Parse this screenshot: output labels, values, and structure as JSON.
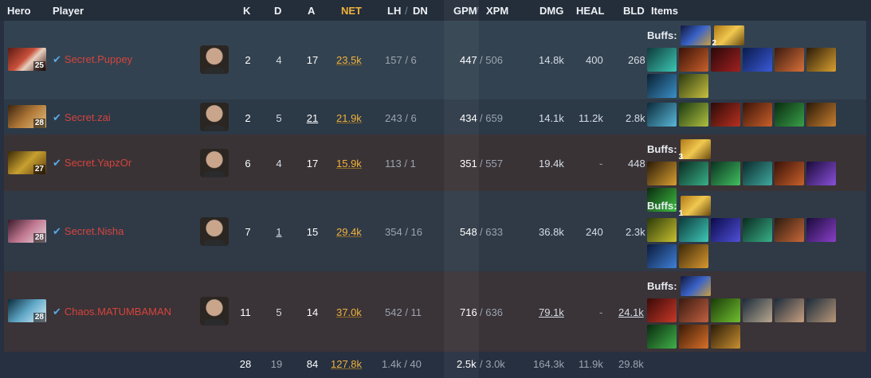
{
  "headers": {
    "hero": "Hero",
    "player": "Player",
    "k": "K",
    "d": "D",
    "a": "A",
    "net": "NET",
    "lh": "LH",
    "dn": "DN",
    "gpm": "GPM",
    "xpm": "XPM",
    "dmg": "DMG",
    "heal": "HEAL",
    "bld": "BLD",
    "items": "Items",
    "slash": "/"
  },
  "buffs_label": "Buffs:",
  "rows": [
    {
      "level": "25",
      "player": "Secret.Puppey",
      "k": "2",
      "d": "4",
      "a": "17",
      "net": "23.5k",
      "lh": "157",
      "dn": "6",
      "gpm": "447",
      "xpm": "506",
      "dmg": "14.8k",
      "heal": "400",
      "bld": "268",
      "buff_count": "2"
    },
    {
      "level": "28",
      "player": "Secret.zai",
      "k": "2",
      "d": "5",
      "a": "21",
      "net": "21.9k",
      "lh": "243",
      "dn": "6",
      "gpm": "434",
      "xpm": "659",
      "dmg": "14.1k",
      "heal": "11.2k",
      "bld": "2.8k"
    },
    {
      "level": "27",
      "player": "Secret.YapzOr",
      "k": "6",
      "d": "4",
      "a": "17",
      "net": "15.9k",
      "lh": "113",
      "dn": "1",
      "gpm": "351",
      "xpm": "557",
      "dmg": "19.4k",
      "heal": "-",
      "bld": "448",
      "buff_count": "3"
    },
    {
      "level": "28",
      "player": "Secret.Nisha",
      "k": "7",
      "d": "1",
      "a": "15",
      "net": "29.4k",
      "lh": "354",
      "dn": "16",
      "gpm": "548",
      "xpm": "633",
      "dmg": "36.8k",
      "heal": "240",
      "bld": "2.3k",
      "buff_count": "1"
    },
    {
      "level": "28",
      "player": "Chaos.MATUMBAMAN",
      "k": "11",
      "d": "5",
      "a": "14",
      "net": "37.0k",
      "lh": "542",
      "dn": "11",
      "gpm": "716",
      "xpm": "636",
      "dmg": "79.1k",
      "heal": "-",
      "bld": "24.1k"
    }
  ],
  "totals": {
    "k": "28",
    "d": "19",
    "a": "84",
    "net": "127.8k",
    "lh": "1.4k",
    "dn": "40",
    "gpm": "2.5k",
    "xpm": "3.0k",
    "dmg": "164.3k",
    "heal": "11.9k",
    "bld": "29.8k"
  },
  "colors": {
    "net": "#f0b23c",
    "player": "#d4443d",
    "verified": "#5aa9e6",
    "row_radiant": "#334250",
    "row_dire": "#3a3336"
  }
}
